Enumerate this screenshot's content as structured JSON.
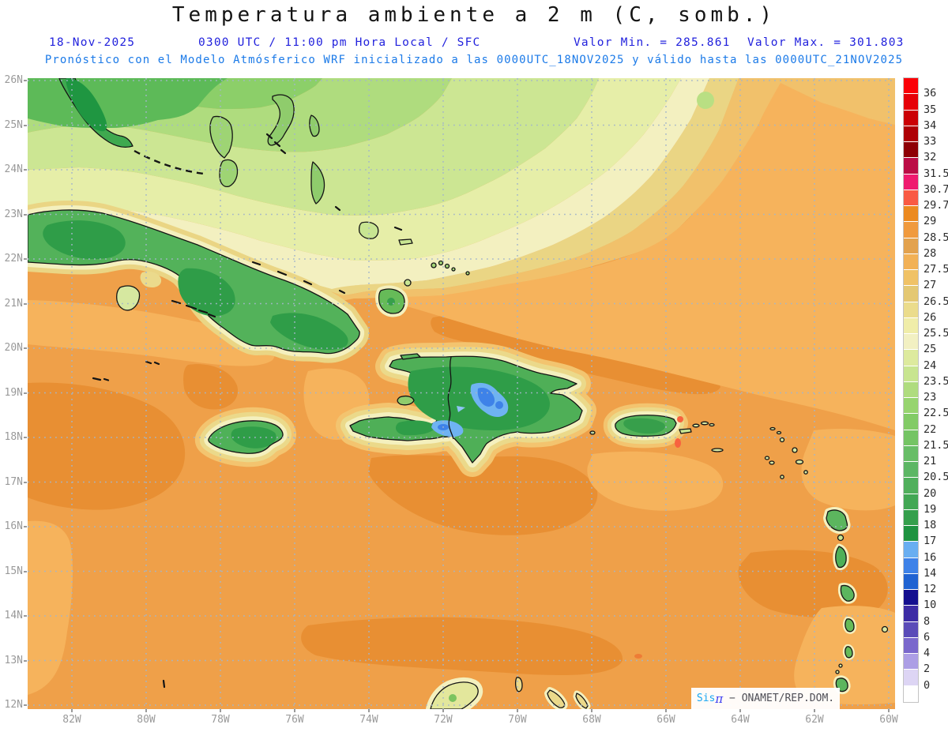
{
  "title": "Temperatura ambiente a 2 m (C, somb.)",
  "header": {
    "date": "18-Nov-2025",
    "time_info": "0300 UTC / 11:00 pm Hora Local / SFC",
    "valor_min": "Valor Min. = 285.861",
    "valor_max": "Valor Max. = 301.803",
    "forecast_line": "Pronóstico con el Modelo Atmósferico WRF inicializado a las 0000UTC_18NOV2025 y válido hasta las  0000UTC_21NOV2025"
  },
  "axes": {
    "y_ticks": [
      "26N",
      "25N",
      "24N",
      "23N",
      "22N",
      "21N",
      "20N",
      "19N",
      "18N",
      "17N",
      "16N",
      "15N",
      "14N",
      "13N",
      "12N"
    ],
    "x_ticks": [
      "82W",
      "80W",
      "78W",
      "76W",
      "74W",
      "72W",
      "70W",
      "68W",
      "66W",
      "64W",
      "62W",
      "60W"
    ]
  },
  "colorbar": {
    "labels": [
      "36",
      "35",
      "34",
      "33",
      "32",
      "31.5",
      "30.7",
      "29.7",
      "29",
      "28.5",
      "28",
      "27.5",
      "27",
      "26.5",
      "26",
      "25.5",
      "25",
      "24",
      "23.5",
      "23",
      "22.5",
      "22",
      "21.5",
      "21",
      "20.5",
      "20",
      "19",
      "18",
      "17",
      "16",
      "14",
      "12",
      "10",
      "8",
      "6",
      "4",
      "2",
      "0"
    ],
    "colors": [
      "#FB0007",
      "#E60008",
      "#CB0105",
      "#AE0005",
      "#8E0005",
      "#BB0D46",
      "#EF1A6F",
      "#F95A43",
      "#EC8A20",
      "#F09A3E",
      "#E3A24E",
      "#F2B156",
      "#F0C266",
      "#E4C873",
      "#EBDC8C",
      "#F0EDA9",
      "#F2F0C2",
      "#DDEA9E",
      "#C8E590",
      "#AFDC7E",
      "#97D46F",
      "#82CB66",
      "#74C464",
      "#68BD67",
      "#5CB664",
      "#50AF5C",
      "#42A754",
      "#349F4C",
      "#1E9341",
      "#69AEF1",
      "#3E82E8",
      "#2063D2",
      "#140F8F",
      "#3D2CA5",
      "#5A4BB8",
      "#7A68CC",
      "#AC9EE5",
      "#DDD5F4",
      "#FFFFFF"
    ]
  },
  "watermark": {
    "sis": "Sis",
    "pi": "π",
    "rest": " − ONAMET/REP.DOM."
  },
  "palette": {
    "ocean_base": "#EFA049",
    "ocean_warm_patch": "#E88F33",
    "ocean_light_patch": "#F6B35C",
    "band_tan": "#F1C16B",
    "band_khaki": "#EAD584",
    "band_cream": "#F3F0C0",
    "band_pale_yellow_green": "#E6EEA8",
    "band_pale_green": "#CCE693",
    "band_light_green": "#AFDC7E",
    "band_green": "#8CCF69",
    "band_deep_green": "#5DBA58",
    "land_green": "#53B25A",
    "land_dark_green": "#2F9D48",
    "mountain_blue_light": "#6FB3F2",
    "mountain_blue": "#3E82E8",
    "hot_spot": "#F8623F",
    "grid_dots": "#A3B6CA",
    "tick_text": "#9A9A9A",
    "header_blue": "#2222DD",
    "forecast_blue": "#1B7AE8"
  }
}
